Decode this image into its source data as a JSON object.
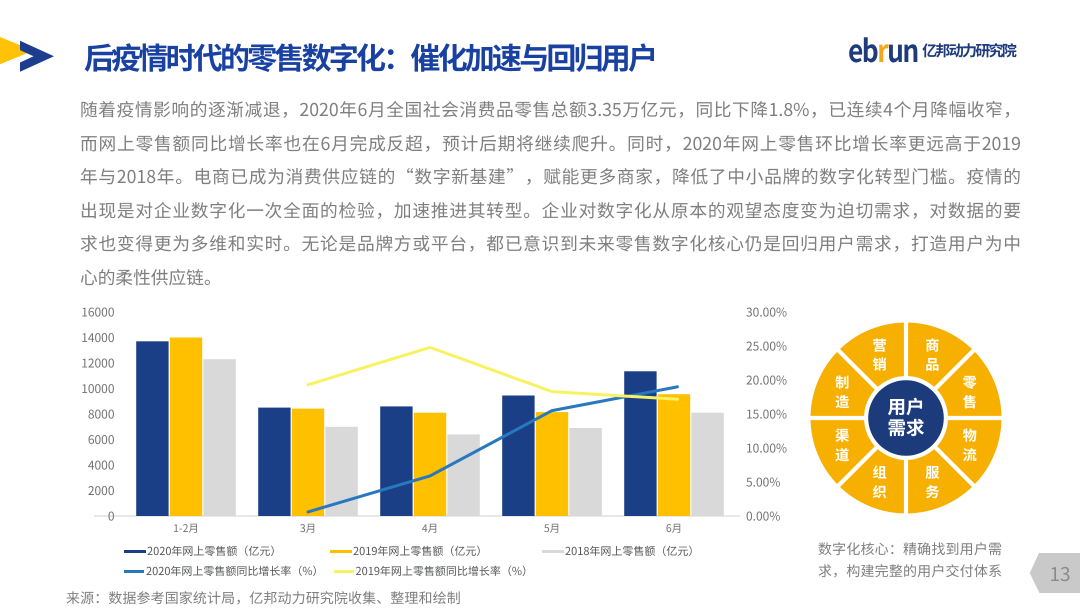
{
  "page": {
    "number": "13",
    "background": "#ffffff"
  },
  "header": {
    "title": "后疫情时代的零售数字化：催化加速与回归用户",
    "title_color": "#1841a1",
    "marker_icon": {
      "yellow": "#ffc207",
      "blue": "#1d3e8f"
    },
    "logo": {
      "word_prefix": "eb",
      "word_accent": "r",
      "word_suffix": "un",
      "cjk": "亿邦动力研究院",
      "navy": "#1e3b7c",
      "accent_color": "#f2a71e"
    }
  },
  "paragraph": {
    "color": "#7f7f7f",
    "lines": [
      "随着疫情影响的逐渐减退，2020年6月全国社会消费品零售总额3.35万亿元，同比下降1.8%，已连续4个月降幅收窄，",
      "而网上零售额同比增长率也在6月完成反超，预计后期将继续爬升。同时，2020年网上零售环比增长率更远高于2019",
      "年与2018年。电商已成为消费供应链的“数字新基建”，赋能更多商家，降低了中小品牌的数字化转型门槛。疫情的",
      "出现是对企业数字化一次全面的检验，加速推进其转型。企业对数字化从原本的观望态度变为迫切需求，对数据的要",
      "求也变得更为多维和实时。无论是品牌方或平台，都已意识到未来零售数字化核心仍是回归用户需求，打造用户为中",
      "心的柔性供应链。"
    ]
  },
  "chart_data": {
    "type": "combo-bar-line",
    "categories": [
      "1-2月",
      "3月",
      "4月",
      "5月",
      "6月"
    ],
    "bar_series": [
      {
        "name": "2020年网上零售额（亿元）",
        "color": "#1a3f87",
        "values": [
          13700,
          8500,
          8600,
          9450,
          11350
        ]
      },
      {
        "name": "2019年网上零售额（亿元）",
        "color": "#ffc000",
        "values": [
          14000,
          8420,
          8100,
          8150,
          9550
        ]
      },
      {
        "name": "2018年网上零售额（亿元）",
        "color": "#d9d9d9",
        "values": [
          12300,
          7000,
          6400,
          6900,
          8100
        ]
      }
    ],
    "line_series": [
      {
        "name": "2020年网上零售额同比增长率（%）",
        "color": "#2878c0",
        "values": [
          null,
          0.6,
          5.9,
          15.5,
          18.9
        ]
      },
      {
        "name": "2019年网上零售额同比增长率（%）",
        "color": "#f8f162",
        "values": [
          null,
          19.3,
          24.8,
          18.3,
          17.2
        ]
      }
    ],
    "left_axis": {
      "min": 0,
      "max": 16000,
      "tick_labels": [
        "0",
        "2000",
        "4000",
        "6000",
        "8000",
        "10000",
        "12000",
        "14000",
        "16000"
      ]
    },
    "right_axis": {
      "min": 0,
      "max": 30,
      "tick_labels": [
        "0.00%",
        "5.00%",
        "10.00%",
        "15.00%",
        "20.00%",
        "25.00%",
        "30.00%"
      ]
    },
    "axis_text_color": "#737373",
    "baseline_color": "#d9d9d9",
    "source": "来源：数据参考国家统计局，亿邦动力研究院收集、整理和绘制"
  },
  "donut": {
    "segments": [
      "商品",
      "零售",
      "物流",
      "服务",
      "组织",
      "渠道",
      "制造",
      "营销"
    ],
    "center_lines": [
      "用户",
      "需求"
    ],
    "ring_color": "#f8b000",
    "center_color": "#1c3b7b",
    "label_color": "#ffffff",
    "caption": [
      "数字化核心：精确找到用户需",
      "求，构建完整的用户交付体系"
    ]
  }
}
